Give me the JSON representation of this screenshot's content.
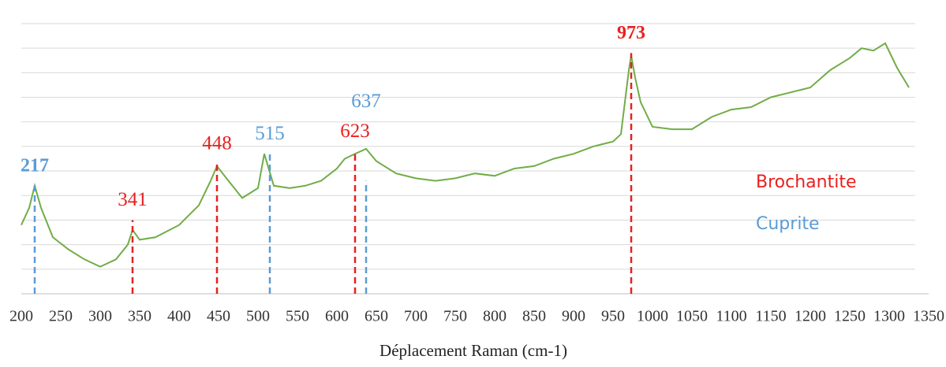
{
  "chart_data": {
    "type": "line",
    "x": [
      200,
      210,
      217,
      225,
      240,
      260,
      280,
      300,
      320,
      335,
      341,
      350,
      370,
      400,
      425,
      440,
      448,
      460,
      480,
      500,
      508,
      520,
      540,
      560,
      580,
      600,
      610,
      623,
      637,
      650,
      675,
      700,
      725,
      750,
      775,
      800,
      825,
      850,
      875,
      900,
      925,
      950,
      960,
      965,
      970,
      973,
      978,
      985,
      1000,
      1025,
      1050,
      1075,
      1100,
      1125,
      1150,
      1175,
      1200,
      1225,
      1250,
      1265,
      1280,
      1295,
      1310,
      1325
    ],
    "values": [
      2.8,
      3.5,
      4.4,
      3.5,
      2.3,
      1.8,
      1.4,
      1.1,
      1.4,
      2.0,
      2.6,
      2.2,
      2.3,
      2.8,
      3.6,
      4.6,
      5.2,
      4.7,
      3.9,
      4.3,
      5.7,
      4.4,
      4.3,
      4.4,
      4.6,
      5.1,
      5.5,
      5.7,
      5.9,
      5.4,
      4.9,
      4.7,
      4.6,
      4.7,
      4.9,
      4.8,
      5.1,
      5.2,
      5.5,
      5.7,
      6.0,
      6.2,
      6.5,
      7.8,
      9.1,
      9.7,
      8.8,
      7.8,
      6.8,
      6.7,
      6.7,
      7.2,
      7.5,
      7.6,
      8.0,
      8.2,
      8.4,
      9.1,
      9.6,
      10.0,
      9.9,
      10.2,
      9.2,
      8.4
    ],
    "color": "#70ad47",
    "xlim": [
      200,
      1350
    ],
    "xticks": [
      200,
      250,
      300,
      350,
      400,
      450,
      500,
      550,
      600,
      650,
      700,
      750,
      800,
      850,
      900,
      950,
      1000,
      1050,
      1100,
      1150,
      1200,
      1250,
      1300,
      1350
    ],
    "ylim": [
      0,
      11
    ],
    "yticks": [
      0,
      1,
      2,
      3,
      4,
      5,
      6,
      7,
      8,
      9,
      10,
      11
    ],
    "grid": true,
    "x_label": "Déplacement Raman (cm-1)",
    "annotations": [
      {
        "x": 217,
        "y": 4.4,
        "color": "#5b9bd5",
        "bold": true
      },
      {
        "x": 341,
        "y": 3.0,
        "color": "#e8201f",
        "bold": false
      },
      {
        "x": 448,
        "y": 5.3,
        "color": "#e8201f",
        "bold": false
      },
      {
        "x": 515,
        "y": 5.7,
        "color": "#5b9bd5",
        "bold": false
      },
      {
        "x": 623,
        "y": 5.8,
        "color": "#e8201f",
        "bold": false
      },
      {
        "x": 637,
        "y": 4.6,
        "color": "#5b9bd5",
        "bold": false
      },
      {
        "x": 973,
        "y": 9.8,
        "color": "#e8201f",
        "bold": true
      }
    ],
    "legend": [
      {
        "name": "Brochantite",
        "color": "#e8201f"
      },
      {
        "name": "Cuprite",
        "color": "#5b9bd5"
      }
    ]
  }
}
